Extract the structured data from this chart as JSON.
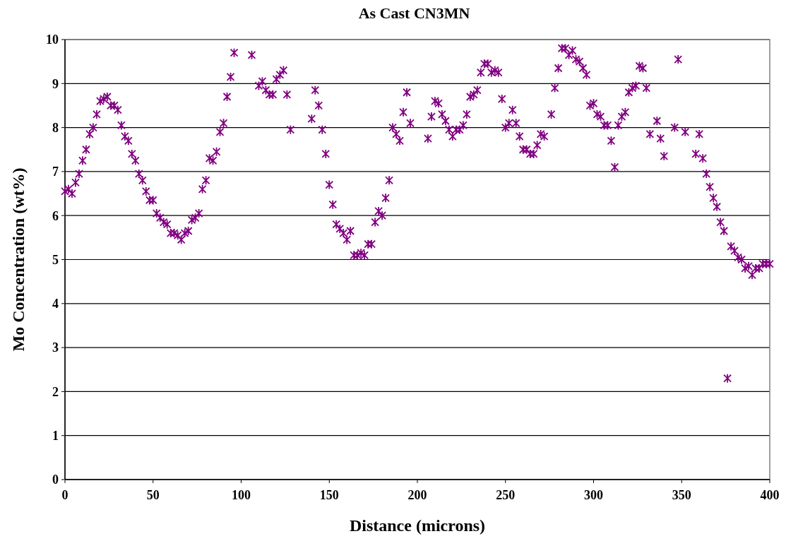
{
  "chart_data": {
    "type": "scatter",
    "title": "As Cast CN3MN",
    "xlabel": "Distance (microns)",
    "ylabel": "Mo Concentration (wt%)",
    "xlim": [
      0,
      400
    ],
    "xticks": [
      0,
      50,
      100,
      150,
      200,
      250,
      300,
      350,
      400
    ],
    "ylim": [
      0,
      10
    ],
    "yticks": [
      0,
      1,
      2,
      3,
      4,
      5,
      6,
      7,
      8,
      9,
      10
    ],
    "grid": "y",
    "marker": "cross",
    "series": [
      {
        "color": "#800080",
        "x": [
          0,
          2,
          4,
          6,
          8,
          10,
          12,
          14,
          16,
          18,
          20,
          22,
          24,
          26,
          28,
          30,
          32,
          34,
          36,
          38,
          40,
          42,
          44,
          46,
          48,
          50,
          52,
          54,
          56,
          58,
          60,
          62,
          64,
          66,
          68,
          70,
          72,
          74,
          76,
          78,
          80,
          82,
          84,
          86,
          88,
          90,
          92,
          94,
          96,
          106,
          110,
          112,
          114,
          116,
          118,
          120,
          122,
          124,
          126,
          128,
          140,
          142,
          144,
          146,
          148,
          150,
          152,
          154,
          156,
          158,
          160,
          162,
          164,
          166,
          168,
          170,
          172,
          174,
          176,
          178,
          180,
          182,
          184,
          186,
          188,
          190,
          192,
          194,
          196,
          206,
          208,
          210,
          212,
          214,
          216,
          218,
          220,
          222,
          224,
          226,
          228,
          230,
          232,
          234,
          236,
          238,
          240,
          242,
          244,
          246,
          248,
          250,
          252,
          254,
          256,
          258,
          260,
          262,
          264,
          266,
          268,
          270,
          272,
          276,
          278,
          280,
          282,
          284,
          286,
          288,
          290,
          292,
          294,
          296,
          298,
          300,
          302,
          304,
          306,
          308,
          310,
          312,
          314,
          316,
          318,
          320,
          322,
          324,
          326,
          328,
          330,
          332,
          336,
          338,
          340,
          346,
          348,
          352,
          358,
          360,
          362,
          364,
          366,
          368,
          370,
          372,
          374,
          376,
          378,
          380,
          382,
          384,
          386,
          388,
          390,
          392,
          394,
          396,
          398,
          400
        ],
        "values": [
          6.55,
          6.6,
          6.5,
          6.75,
          6.95,
          7.25,
          7.5,
          7.85,
          8.0,
          8.3,
          8.6,
          8.65,
          8.7,
          8.5,
          8.5,
          8.4,
          8.05,
          7.8,
          7.7,
          7.4,
          7.25,
          6.95,
          6.8,
          6.55,
          6.35,
          6.35,
          6.05,
          5.95,
          5.85,
          5.8,
          5.6,
          5.6,
          5.55,
          5.45,
          5.6,
          5.65,
          5.9,
          5.95,
          6.05,
          6.6,
          6.8,
          7.3,
          7.25,
          7.45,
          7.9,
          8.1,
          8.7,
          9.15,
          9.7,
          9.65,
          8.95,
          9.05,
          8.85,
          8.75,
          8.75,
          9.1,
          9.2,
          9.3,
          8.75,
          7.95,
          8.2,
          8.85,
          8.5,
          7.95,
          7.4,
          6.7,
          6.25,
          5.8,
          5.7,
          5.6,
          5.45,
          5.65,
          5.1,
          5.1,
          5.15,
          5.1,
          5.35,
          5.35,
          5.85,
          6.1,
          6.0,
          6.4,
          6.8,
          8.0,
          7.85,
          7.7,
          8.35,
          8.8,
          8.1,
          7.75,
          8.25,
          8.6,
          8.55,
          8.3,
          8.15,
          7.95,
          7.8,
          7.95,
          7.95,
          8.05,
          8.3,
          8.7,
          8.75,
          8.85,
          9.25,
          9.45,
          9.45,
          9.25,
          9.3,
          9.25,
          8.65,
          8.0,
          8.1,
          8.4,
          8.1,
          7.8,
          7.5,
          7.5,
          7.4,
          7.4,
          7.6,
          7.85,
          7.8,
          8.3,
          8.9,
          9.35,
          9.8,
          9.8,
          9.65,
          9.75,
          9.55,
          9.5,
          9.35,
          9.2,
          8.5,
          8.55,
          8.3,
          8.25,
          8.05,
          8.05,
          7.7,
          7.1,
          8.05,
          8.25,
          8.35,
          8.8,
          8.9,
          8.95,
          9.4,
          9.35,
          8.9,
          7.85,
          8.15,
          7.75,
          7.35,
          8.0,
          9.55,
          7.9,
          7.4,
          7.85,
          7.3,
          6.95,
          6.65,
          6.4,
          6.2,
          5.85,
          5.65,
          2.3,
          5.3,
          5.2,
          5.05,
          5.0,
          4.8,
          4.85,
          4.65,
          4.8,
          4.8,
          4.9,
          4.9,
          4.9
        ]
      }
    ]
  }
}
